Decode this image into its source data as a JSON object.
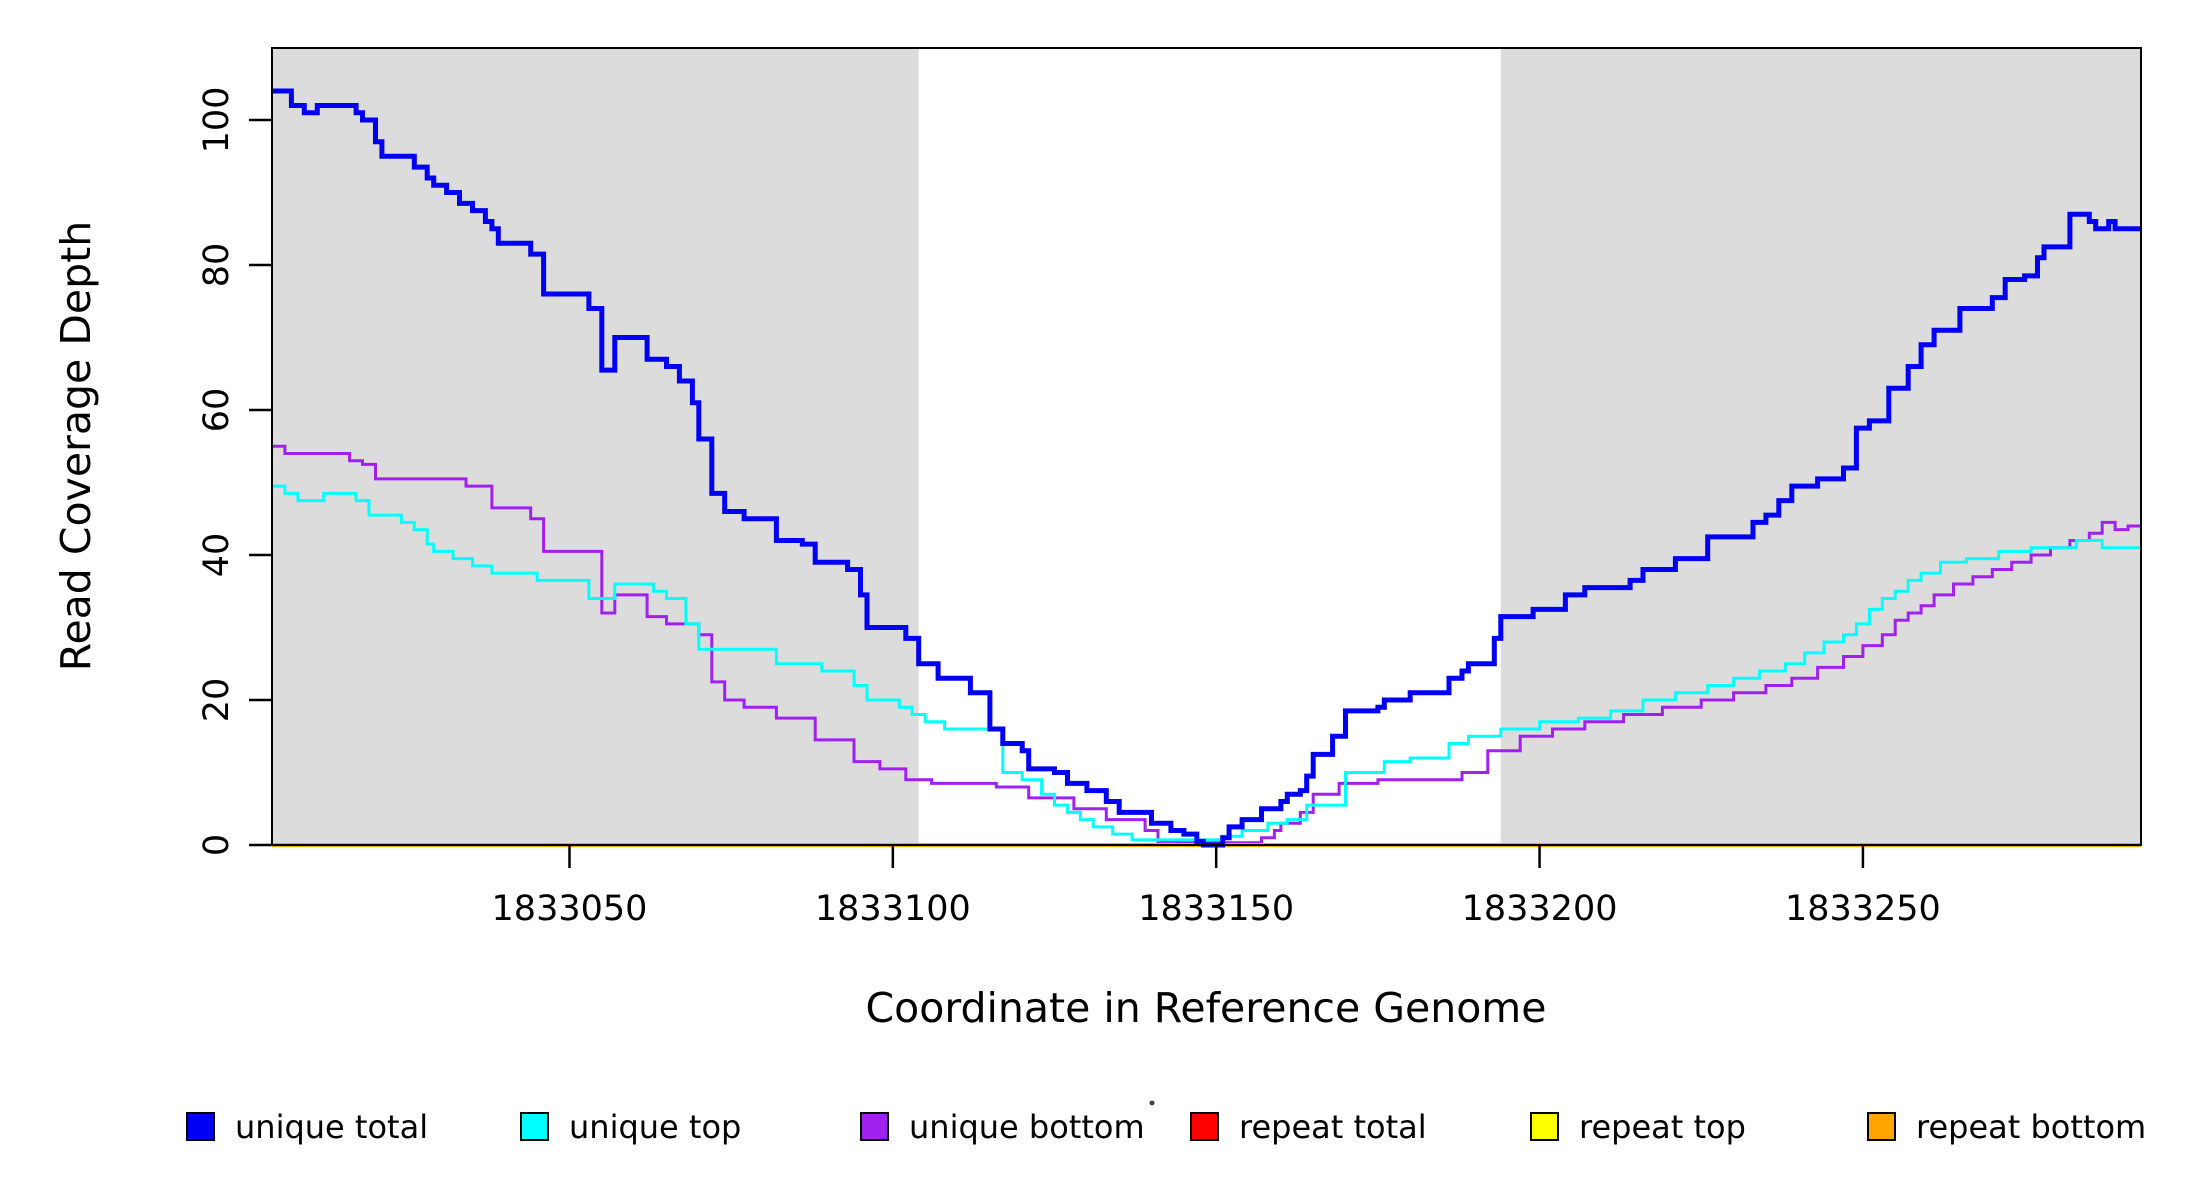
{
  "chart_data": {
    "type": "line",
    "subtype": "step-coverage-plot",
    "title": "",
    "xlabel": "Coordinate in Reference Genome",
    "ylabel": "Read Coverage Depth",
    "xlim": [
      1833004,
      1833293
    ],
    "ylim": [
      0,
      110
    ],
    "x_ticks": [
      1833050,
      1833100,
      1833150,
      1833200,
      1833250
    ],
    "y_ticks": [
      0,
      20,
      40,
      60,
      80,
      100
    ],
    "grid": false,
    "legend_position": "bottom",
    "background_color": "#ffffff",
    "shade_color": "#dcdcdc",
    "shade_regions": [
      {
        "name": "left-repeat-shade",
        "from": 1833004,
        "to": 1833104
      },
      {
        "name": "right-repeat-shade",
        "from": 1833194,
        "to": 1833293
      }
    ],
    "series": [
      {
        "name": "repeat-total",
        "label": "repeat total",
        "color": "#ff0000",
        "width": 3,
        "points": [
          [
            1833004,
            0
          ]
        ]
      },
      {
        "name": "repeat-top",
        "label": "repeat top",
        "color": "#ffff00",
        "width": 3,
        "points": [
          [
            1833004,
            0
          ]
        ]
      },
      {
        "name": "unique-bottom",
        "label": "unique bottom",
        "color": "#a020f0",
        "width": 3,
        "points": [
          [
            1833004,
            55
          ],
          [
            1833006,
            54
          ],
          [
            1833016,
            53
          ],
          [
            1833018,
            52.5
          ],
          [
            1833020,
            50.5
          ],
          [
            1833034,
            49.5
          ],
          [
            1833038,
            46.5
          ],
          [
            1833044,
            45
          ],
          [
            1833046,
            40.5
          ],
          [
            1833055,
            32
          ],
          [
            1833057,
            34.5
          ],
          [
            1833062,
            31.5
          ],
          [
            1833065,
            30.5
          ],
          [
            1833070,
            29
          ],
          [
            1833072,
            22.5
          ],
          [
            1833074,
            20
          ],
          [
            1833077,
            19
          ],
          [
            1833082,
            17.5
          ],
          [
            1833088,
            14.5
          ],
          [
            1833094,
            11.5
          ],
          [
            1833098,
            10.5
          ],
          [
            1833102,
            9
          ],
          [
            1833106,
            8.5
          ],
          [
            1833116,
            8
          ],
          [
            1833121,
            6.5
          ],
          [
            1833128,
            5
          ],
          [
            1833133,
            3.5
          ],
          [
            1833139,
            2
          ],
          [
            1833141,
            0.5
          ],
          [
            1833144,
            0.3
          ],
          [
            1833157,
            1
          ],
          [
            1833159,
            2
          ],
          [
            1833160,
            3
          ],
          [
            1833163,
            4.5
          ],
          [
            1833165,
            7
          ],
          [
            1833169,
            8.5
          ],
          [
            1833175,
            9
          ],
          [
            1833188,
            10
          ],
          [
            1833192,
            13
          ],
          [
            1833197,
            15
          ],
          [
            1833202,
            16
          ],
          [
            1833207,
            17
          ],
          [
            1833213,
            18
          ],
          [
            1833219,
            19
          ],
          [
            1833225,
            20
          ],
          [
            1833230,
            21
          ],
          [
            1833235,
            22
          ],
          [
            1833239,
            23
          ],
          [
            1833243,
            24.5
          ],
          [
            1833247,
            26
          ],
          [
            1833250,
            27.5
          ],
          [
            1833253,
            29
          ],
          [
            1833255,
            31
          ],
          [
            1833257,
            32
          ],
          [
            1833259,
            33
          ],
          [
            1833261,
            34.5
          ],
          [
            1833264,
            36
          ],
          [
            1833267,
            37
          ],
          [
            1833270,
            38
          ],
          [
            1833273,
            39
          ],
          [
            1833276,
            40
          ],
          [
            1833279,
            41
          ],
          [
            1833282,
            42
          ],
          [
            1833285,
            43
          ],
          [
            1833287,
            44.5
          ],
          [
            1833289,
            43.5
          ],
          [
            1833291,
            44
          ]
        ]
      },
      {
        "name": "unique-top",
        "label": "unique top",
        "color": "#00ffff",
        "width": 3,
        "points": [
          [
            1833004,
            49.5
          ],
          [
            1833006,
            48.5
          ],
          [
            1833008,
            47.5
          ],
          [
            1833012,
            48.5
          ],
          [
            1833017,
            47.5
          ],
          [
            1833019,
            45.5
          ],
          [
            1833024,
            44.5
          ],
          [
            1833026,
            43.5
          ],
          [
            1833028,
            41.5
          ],
          [
            1833029,
            40.5
          ],
          [
            1833032,
            39.5
          ],
          [
            1833035,
            38.5
          ],
          [
            1833038,
            37.5
          ],
          [
            1833045,
            36.5
          ],
          [
            1833053,
            34
          ],
          [
            1833057,
            36
          ],
          [
            1833063,
            35
          ],
          [
            1833065,
            34
          ],
          [
            1833068,
            30.5
          ],
          [
            1833070,
            27
          ],
          [
            1833082,
            25
          ],
          [
            1833089,
            24
          ],
          [
            1833094,
            22
          ],
          [
            1833096,
            20
          ],
          [
            1833101,
            19
          ],
          [
            1833103,
            18
          ],
          [
            1833105,
            17
          ],
          [
            1833108,
            16
          ],
          [
            1833117,
            10
          ],
          [
            1833120,
            9
          ],
          [
            1833123,
            7
          ],
          [
            1833125,
            5.5
          ],
          [
            1833127,
            4.5
          ],
          [
            1833129,
            3.5
          ],
          [
            1833131,
            2.5
          ],
          [
            1833134,
            1.5
          ],
          [
            1833137,
            0.7
          ],
          [
            1833151,
            1.2
          ],
          [
            1833154,
            2
          ],
          [
            1833158,
            3
          ],
          [
            1833161,
            3.5
          ],
          [
            1833164,
            5.5
          ],
          [
            1833170,
            10
          ],
          [
            1833176,
            11.5
          ],
          [
            1833180,
            12
          ],
          [
            1833186,
            14
          ],
          [
            1833189,
            15
          ],
          [
            1833194,
            16
          ],
          [
            1833200,
            17
          ],
          [
            1833206,
            17.5
          ],
          [
            1833211,
            18.5
          ],
          [
            1833216,
            20
          ],
          [
            1833221,
            21
          ],
          [
            1833226,
            22
          ],
          [
            1833230,
            23
          ],
          [
            1833234,
            24
          ],
          [
            1833238,
            25
          ],
          [
            1833241,
            26.5
          ],
          [
            1833244,
            28
          ],
          [
            1833247,
            29
          ],
          [
            1833249,
            30.5
          ],
          [
            1833251,
            32.5
          ],
          [
            1833253,
            34
          ],
          [
            1833255,
            35
          ],
          [
            1833257,
            36.5
          ],
          [
            1833259,
            37.5
          ],
          [
            1833262,
            39
          ],
          [
            1833266,
            39.5
          ],
          [
            1833271,
            40.5
          ],
          [
            1833276,
            41
          ],
          [
            1833283,
            42
          ],
          [
            1833287,
            41
          ]
        ]
      },
      {
        "name": "repeat-bottom",
        "label": "repeat bottom",
        "color": "#ffa500",
        "width": 4,
        "points": [
          [
            1833004,
            0
          ]
        ]
      },
      {
        "name": "unique-total",
        "label": "unique total",
        "color": "#0000f5",
        "width": 5,
        "points": [
          [
            1833004,
            104
          ],
          [
            1833007,
            102
          ],
          [
            1833009,
            101
          ],
          [
            1833011,
            102
          ],
          [
            1833017,
            101
          ],
          [
            1833018,
            100
          ],
          [
            1833020,
            97
          ],
          [
            1833021,
            95
          ],
          [
            1833026,
            93.5
          ],
          [
            1833028,
            92
          ],
          [
            1833029,
            91
          ],
          [
            1833031,
            90
          ],
          [
            1833033,
            88.5
          ],
          [
            1833035,
            87.5
          ],
          [
            1833037,
            86
          ],
          [
            1833038,
            85
          ],
          [
            1833039,
            83
          ],
          [
            1833044,
            81.5
          ],
          [
            1833046,
            76
          ],
          [
            1833053,
            74
          ],
          [
            1833055,
            65.5
          ],
          [
            1833057,
            70
          ],
          [
            1833062,
            67
          ],
          [
            1833065,
            66
          ],
          [
            1833067,
            64
          ],
          [
            1833069,
            61
          ],
          [
            1833070,
            56
          ],
          [
            1833072,
            48.5
          ],
          [
            1833074,
            46
          ],
          [
            1833077,
            45
          ],
          [
            1833082,
            42
          ],
          [
            1833086,
            41.5
          ],
          [
            1833088,
            39
          ],
          [
            1833093,
            38
          ],
          [
            1833095,
            34.5
          ],
          [
            1833096,
            30
          ],
          [
            1833102,
            28.5
          ],
          [
            1833104,
            25
          ],
          [
            1833107,
            23
          ],
          [
            1833112,
            21
          ],
          [
            1833115,
            16
          ],
          [
            1833117,
            14
          ],
          [
            1833120,
            13
          ],
          [
            1833121,
            10.5
          ],
          [
            1833125,
            10
          ],
          [
            1833127,
            8.5
          ],
          [
            1833130,
            7.5
          ],
          [
            1833133,
            6
          ],
          [
            1833135,
            4.5
          ],
          [
            1833140,
            3
          ],
          [
            1833143,
            2
          ],
          [
            1833145,
            1.5
          ],
          [
            1833147,
            0.5
          ],
          [
            1833148,
            0
          ],
          [
            1833151,
            1
          ],
          [
            1833152,
            2.5
          ],
          [
            1833154,
            3.5
          ],
          [
            1833157,
            5
          ],
          [
            1833160,
            6
          ],
          [
            1833161,
            7
          ],
          [
            1833163,
            7.5
          ],
          [
            1833164,
            9.5
          ],
          [
            1833165,
            12.5
          ],
          [
            1833168,
            15
          ],
          [
            1833170,
            18.5
          ],
          [
            1833175,
            19
          ],
          [
            1833176,
            20
          ],
          [
            1833180,
            21
          ],
          [
            1833186,
            23
          ],
          [
            1833188,
            24
          ],
          [
            1833189,
            25
          ],
          [
            1833193,
            28.5
          ],
          [
            1833194,
            31.5
          ],
          [
            1833199,
            32.5
          ],
          [
            1833204,
            34.5
          ],
          [
            1833207,
            35.5
          ],
          [
            1833214,
            36.5
          ],
          [
            1833216,
            38
          ],
          [
            1833221,
            39.5
          ],
          [
            1833226,
            42.5
          ],
          [
            1833233,
            44.5
          ],
          [
            1833235,
            45.5
          ],
          [
            1833237,
            47.5
          ],
          [
            1833239,
            49.5
          ],
          [
            1833243,
            50.5
          ],
          [
            1833247,
            52
          ],
          [
            1833249,
            57.5
          ],
          [
            1833251,
            58.5
          ],
          [
            1833254,
            63
          ],
          [
            1833257,
            66
          ],
          [
            1833259,
            69
          ],
          [
            1833261,
            71
          ],
          [
            1833265,
            74
          ],
          [
            1833270,
            75.5
          ],
          [
            1833272,
            78
          ],
          [
            1833275,
            78.5
          ],
          [
            1833277,
            81
          ],
          [
            1833278,
            82.5
          ],
          [
            1833282,
            87
          ],
          [
            1833285,
            86
          ],
          [
            1833286,
            85
          ],
          [
            1833288,
            86
          ],
          [
            1833289,
            85
          ]
        ]
      }
    ],
    "legend": {
      "items": [
        {
          "label": "unique total",
          "color": "#0000f5"
        },
        {
          "label": "unique top",
          "color": "#00ffff"
        },
        {
          "label": "unique bottom",
          "color": "#a020f0"
        },
        {
          "label": "repeat total",
          "color": "#ff0000"
        },
        {
          "label": "repeat top",
          "color": "#ffff00"
        },
        {
          "label": "repeat bottom",
          "color": "#ffa500"
        }
      ]
    }
  }
}
